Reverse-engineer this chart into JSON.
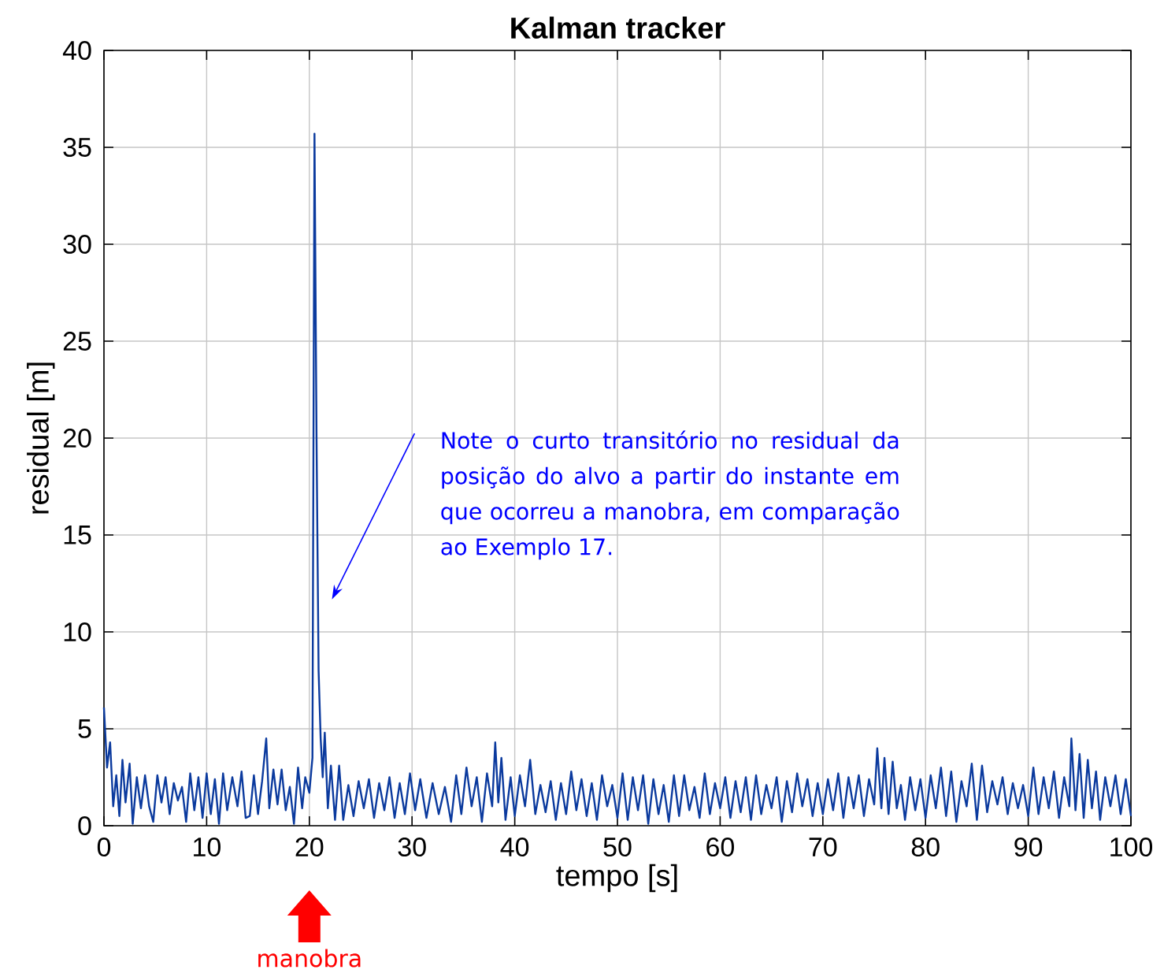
{
  "chart_data": {
    "type": "line",
    "title": "Kalman tracker",
    "xlabel": "tempo [s]",
    "ylabel": "residual [m]",
    "xlim": [
      0,
      100
    ],
    "ylim": [
      0,
      40
    ],
    "xticks": [
      0,
      10,
      20,
      30,
      40,
      50,
      60,
      70,
      80,
      90,
      100
    ],
    "yticks": [
      0,
      5,
      10,
      15,
      20,
      25,
      30,
      35,
      40
    ],
    "grid": true,
    "annotations": [
      "Note o curto transitório no residual da posição do alvo a partir do instante em que ocorreu a manobra, em comparação ao Exemplo 17.",
      "manobra"
    ],
    "series": [
      {
        "color": "#0b3a9e",
        "x": [
          0,
          0.3,
          0.6,
          0.9,
          1.2,
          1.5,
          1.8,
          2.1,
          2.5,
          2.8,
          3.2,
          3.6,
          4.0,
          4.4,
          4.8,
          5.2,
          5.6,
          6.0,
          6.4,
          6.8,
          7.2,
          7.6,
          8.0,
          8.4,
          8.8,
          9.2,
          9.6,
          10.0,
          10.4,
          10.8,
          11.2,
          11.6,
          12.0,
          12.5,
          13.0,
          13.4,
          13.8,
          14.2,
          14.6,
          15.0,
          15.4,
          15.8,
          16.1,
          16.5,
          16.9,
          17.3,
          17.7,
          18.1,
          18.5,
          18.9,
          19.3,
          19.6,
          20.0,
          20.3,
          20.5,
          20.7,
          20.9,
          21.1,
          21.3,
          21.5,
          21.8,
          22.1,
          22.5,
          22.9,
          23.3,
          23.8,
          24.3,
          24.8,
          25.3,
          25.8,
          26.3,
          26.8,
          27.3,
          27.8,
          28.3,
          28.8,
          29.3,
          29.8,
          30.3,
          30.8,
          31.4,
          32.0,
          32.6,
          33.2,
          33.8,
          34.3,
          34.8,
          35.3,
          35.8,
          36.3,
          36.8,
          37.3,
          37.8,
          38.1,
          38.4,
          38.7,
          39.1,
          39.6,
          40.0,
          40.5,
          41.0,
          41.5,
          42.0,
          42.5,
          43.0,
          43.5,
          44.0,
          44.5,
          45.0,
          45.5,
          46.0,
          46.5,
          47.0,
          47.5,
          48.0,
          48.5,
          49.0,
          49.5,
          50.0,
          50.5,
          51.0,
          51.5,
          52.0,
          52.5,
          53.0,
          53.5,
          54.0,
          54.5,
          55.0,
          55.5,
          56.0,
          56.5,
          57.0,
          57.5,
          58.0,
          58.5,
          59.0,
          59.5,
          60.0,
          60.5,
          61.0,
          61.5,
          62.0,
          62.5,
          63.0,
          63.5,
          64.0,
          64.5,
          65.0,
          65.5,
          66.0,
          66.5,
          67.0,
          67.5,
          68.0,
          68.5,
          69.0,
          69.5,
          70.0,
          70.5,
          71.0,
          71.5,
          72.0,
          72.5,
          73.0,
          73.5,
          74.0,
          74.5,
          75.0,
          75.3,
          75.7,
          76.0,
          76.4,
          76.8,
          77.2,
          77.6,
          78.0,
          78.5,
          79.0,
          79.5,
          80.0,
          80.5,
          81.0,
          81.5,
          82.0,
          82.5,
          83.0,
          83.5,
          84.0,
          84.5,
          85.0,
          85.5,
          86.0,
          86.5,
          87.0,
          87.5,
          88.0,
          88.5,
          89.0,
          89.5,
          90.0,
          90.5,
          91.0,
          91.5,
          92.0,
          92.5,
          93.0,
          93.5,
          94.0,
          94.2,
          94.6,
          95.0,
          95.4,
          95.8,
          96.2,
          96.6,
          97.0,
          97.5,
          98.0,
          98.5,
          99.0,
          99.5,
          100
        ],
        "values": [
          6.1,
          3.0,
          4.3,
          1.0,
          2.6,
          0.5,
          3.4,
          1.2,
          3.2,
          0.1,
          2.5,
          0.9,
          2.6,
          1.0,
          0.2,
          2.6,
          1.2,
          2.5,
          0.6,
          2.2,
          1.3,
          2.0,
          0.2,
          2.7,
          0.8,
          2.5,
          0.4,
          2.7,
          0.6,
          2.4,
          0.1,
          2.7,
          0.8,
          2.5,
          1.0,
          2.8,
          0.4,
          0.5,
          2.6,
          0.6,
          2.3,
          4.5,
          0.9,
          2.9,
          1.1,
          2.9,
          0.8,
          2.0,
          0.1,
          3.0,
          0.9,
          2.5,
          1.7,
          3.5,
          35.7,
          20,
          8,
          4.5,
          2.5,
          4.8,
          0.9,
          3.1,
          0.3,
          3.1,
          0.3,
          2.1,
          0.5,
          2.3,
          0.9,
          2.4,
          0.4,
          2.2,
          0.8,
          2.5,
          0.4,
          2.2,
          0.6,
          2.7,
          0.8,
          2.4,
          0.4,
          2.2,
          0.6,
          2.0,
          0.2,
          2.6,
          0.6,
          3.0,
          1.0,
          2.5,
          0.2,
          2.7,
          1.0,
          4.3,
          1.2,
          3.5,
          0.3,
          2.5,
          0.5,
          2.6,
          1.0,
          3.4,
          0.6,
          2.1,
          0.7,
          2.3,
          0.3,
          2.2,
          0.6,
          2.8,
          0.8,
          2.4,
          0.5,
          2.2,
          0.3,
          2.6,
          1.0,
          2.1,
          0.4,
          2.7,
          0.3,
          2.5,
          0.8,
          2.6,
          0.1,
          2.4,
          0.6,
          2.1,
          0.2,
          2.6,
          0.5,
          2.6,
          0.8,
          2.0,
          0.4,
          2.7,
          0.6,
          2.2,
          0.9,
          2.5,
          0.4,
          2.3,
          0.7,
          2.5,
          0.3,
          2.6,
          0.6,
          2.1,
          0.9,
          2.5,
          0.2,
          2.3,
          0.7,
          2.7,
          1.0,
          2.4,
          0.5,
          2.2,
          0.6,
          2.4,
          0.8,
          2.7,
          0.4,
          2.5,
          0.9,
          2.6,
          0.5,
          2.4,
          1.1,
          4.0,
          0.9,
          3.5,
          0.6,
          3.3,
          0.9,
          2.1,
          0.3,
          2.5,
          0.8,
          2.4,
          0.4,
          2.6,
          0.9,
          3.0,
          0.5,
          2.8,
          0.2,
          2.3,
          1.0,
          3.2,
          0.3,
          3.1,
          0.7,
          2.3,
          1.1,
          2.5,
          0.6,
          2.2,
          0.9,
          2.1,
          0.5,
          3.0,
          0.6,
          2.5,
          0.9,
          2.8,
          0.4,
          2.5,
          1.0,
          4.5,
          0.8,
          3.7,
          0.4,
          3.4,
          0.9,
          2.8,
          0.3,
          2.5,
          1.0,
          2.6,
          0.6,
          2.4,
          0.5
        ]
      }
    ]
  }
}
